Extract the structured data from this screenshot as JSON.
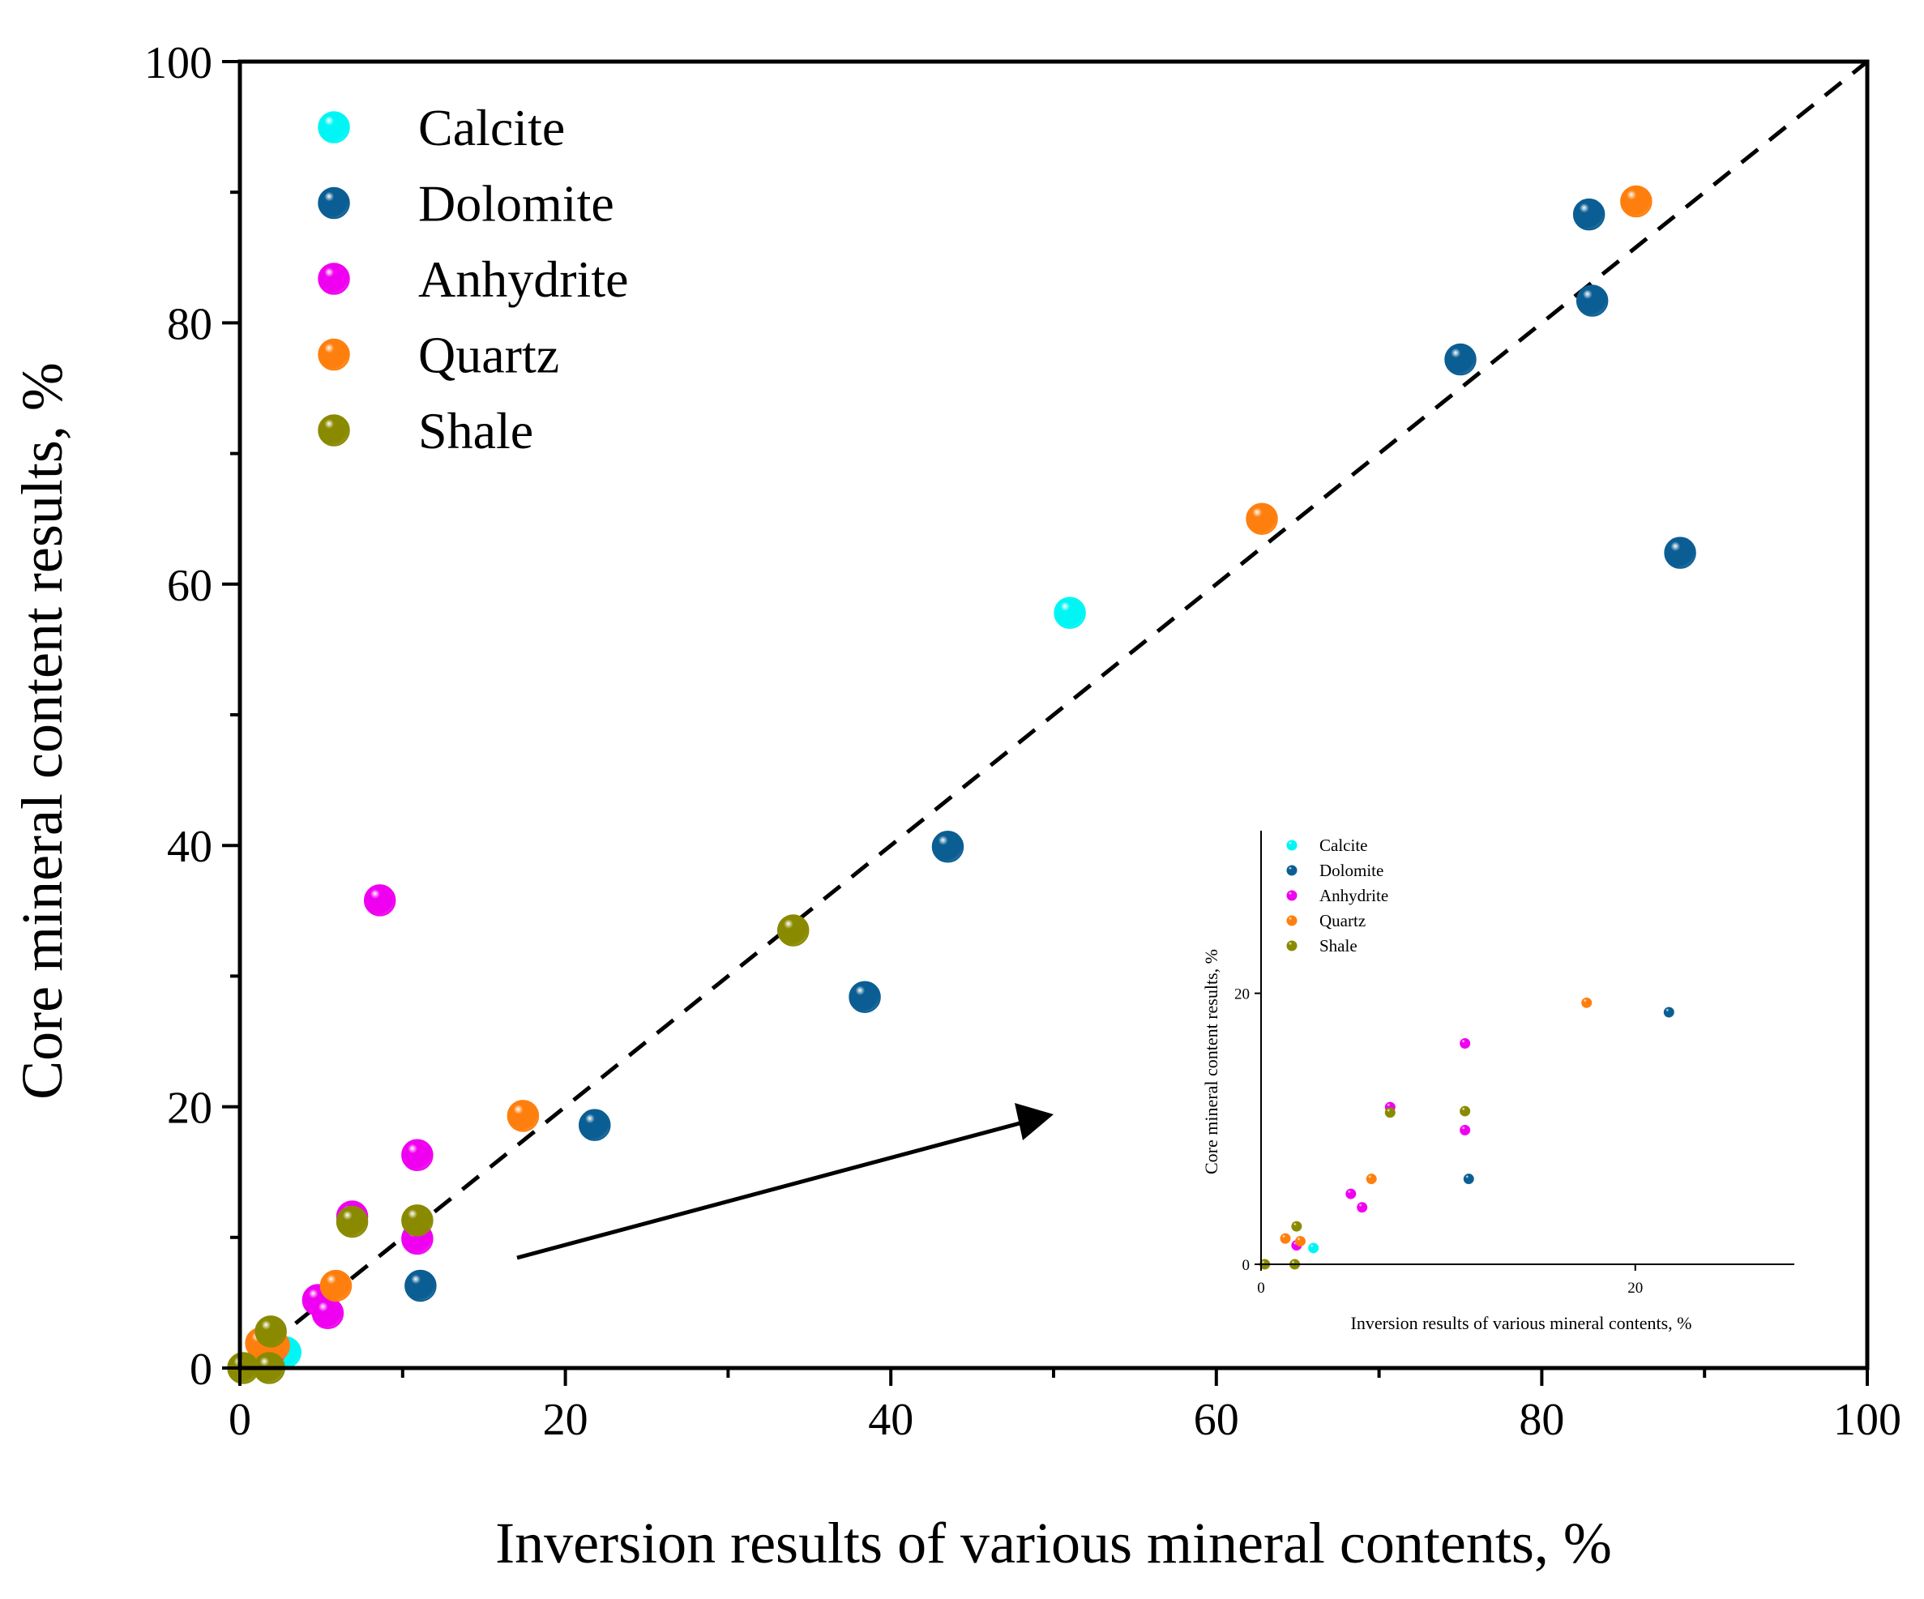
{
  "chart_data": [
    {
      "type": "scatter",
      "title": "",
      "xlabel": "Inversion results of various mineral contents, %",
      "ylabel": "Core mineral content results, %",
      "xlim": [
        0,
        100
      ],
      "ylim": [
        0,
        100
      ],
      "xticks": [
        0,
        20,
        40,
        60,
        80,
        100
      ],
      "yticks": [
        0,
        20,
        40,
        60,
        80,
        100
      ],
      "reference_line": {
        "name": "1:1 line",
        "x": [
          0,
          100
        ],
        "y": [
          0,
          100
        ],
        "style": "dashed"
      },
      "legend_position": "top-left",
      "series": [
        {
          "name": "Calcite",
          "color": "#00f5f5",
          "points": [
            [
              2.8,
              1.2
            ],
            [
              51.0,
              57.8
            ]
          ]
        },
        {
          "name": "Dolomite",
          "color": "#0b5e93",
          "points": [
            [
              11.1,
              6.3
            ],
            [
              21.8,
              18.6
            ],
            [
              38.4,
              28.4
            ],
            [
              43.5,
              39.9
            ],
            [
              75.0,
              77.2
            ],
            [
              82.9,
              88.3
            ],
            [
              83.1,
              81.7
            ],
            [
              88.5,
              62.4
            ]
          ]
        },
        {
          "name": "Anhydrite",
          "color": "#f000f0",
          "points": [
            [
              1.9,
              1.4
            ],
            [
              4.8,
              5.2
            ],
            [
              5.4,
              4.2
            ],
            [
              6.9,
              11.6
            ],
            [
              8.6,
              35.8
            ],
            [
              10.9,
              9.9
            ],
            [
              10.9,
              16.3
            ]
          ]
        },
        {
          "name": "Quartz",
          "color": "#ff7f0e",
          "points": [
            [
              1.3,
              1.9
            ],
            [
              2.1,
              1.7
            ],
            [
              5.9,
              6.3
            ],
            [
              17.4,
              19.3
            ],
            [
              62.8,
              65.0
            ],
            [
              85.8,
              89.3
            ]
          ]
        },
        {
          "name": "Shale",
          "color": "#8a8a00",
          "points": [
            [
              0.2,
              0.0
            ],
            [
              1.8,
              0.0
            ],
            [
              1.9,
              2.8
            ],
            [
              6.9,
              11.2
            ],
            [
              10.9,
              11.3
            ],
            [
              34.0,
              33.5
            ]
          ]
        }
      ]
    },
    {
      "type": "scatter",
      "title": "",
      "xlabel": "Inversion results of various mineral contents, %",
      "ylabel": "Core mineral content results, %",
      "xlim": [
        0,
        28.5
      ],
      "ylim": [
        0,
        32
      ],
      "xticks": [
        0,
        20
      ],
      "yticks": [
        0,
        20
      ],
      "legend_position": "top-left",
      "series": [
        {
          "name": "Calcite",
          "color": "#00f5f5",
          "points": [
            [
              2.8,
              1.2
            ]
          ]
        },
        {
          "name": "Dolomite",
          "color": "#0b5e93",
          "points": [
            [
              11.1,
              6.3
            ],
            [
              21.8,
              18.6
            ]
          ]
        },
        {
          "name": "Anhydrite",
          "color": "#f000f0",
          "points": [
            [
              1.9,
              1.4
            ],
            [
              4.8,
              5.2
            ],
            [
              5.4,
              4.2
            ],
            [
              6.9,
              11.6
            ],
            [
              10.9,
              9.9
            ],
            [
              10.9,
              16.3
            ]
          ]
        },
        {
          "name": "Quartz",
          "color": "#ff7f0e",
          "points": [
            [
              1.3,
              1.9
            ],
            [
              2.1,
              1.7
            ],
            [
              5.9,
              6.3
            ],
            [
              17.4,
              19.3
            ]
          ]
        },
        {
          "name": "Shale",
          "color": "#8a8a00",
          "points": [
            [
              0.2,
              0.0
            ],
            [
              1.8,
              0.0
            ],
            [
              1.9,
              2.8
            ],
            [
              6.9,
              11.2
            ],
            [
              10.9,
              11.3
            ]
          ]
        }
      ]
    }
  ]
}
